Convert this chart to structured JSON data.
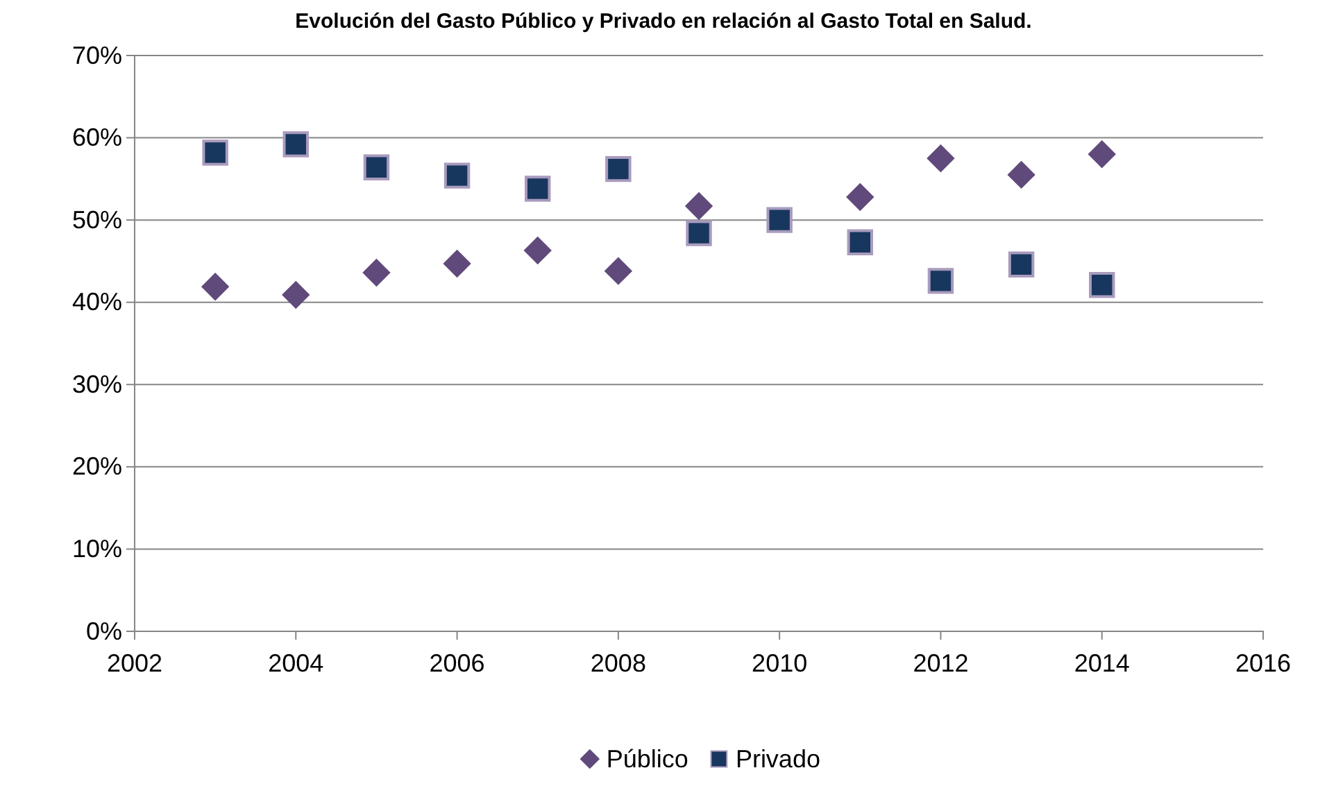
{
  "chart_data": {
    "type": "scatter",
    "title": "Evolución del Gasto Público y Privado en relación al Gasto Total en Salud.",
    "x": [
      2003,
      2004,
      2005,
      2006,
      2007,
      2008,
      2009,
      2010,
      2011,
      2012,
      2013,
      2014
    ],
    "series": [
      {
        "name": "Público",
        "color": "#604a7b",
        "marker": "diamond",
        "values": [
          41.9,
          40.9,
          43.6,
          44.7,
          46.3,
          43.8,
          51.7,
          null,
          52.8,
          57.5,
          55.5,
          58.0
        ]
      },
      {
        "name": "Privado",
        "color": "#17375e",
        "marker": "square",
        "values": [
          58.2,
          59.2,
          56.4,
          55.4,
          53.8,
          56.2,
          48.4,
          50.0,
          47.3,
          42.6,
          44.6,
          42.1
        ]
      }
    ],
    "xlim": [
      2002,
      2016
    ],
    "xticks": [
      2002,
      2004,
      2006,
      2008,
      2010,
      2012,
      2014,
      2016
    ],
    "ylim": [
      0,
      70
    ],
    "yticks": [
      {
        "value": 0,
        "label": "0%"
      },
      {
        "value": 10,
        "label": "10%"
      },
      {
        "value": 20,
        "label": "20%"
      },
      {
        "value": 30,
        "label": "30%"
      },
      {
        "value": 40,
        "label": "40%"
      },
      {
        "value": 50,
        "label": "50%"
      },
      {
        "value": 60,
        "label": "60%"
      },
      {
        "value": 70,
        "label": "70%"
      }
    ],
    "grid": "y",
    "legend": "bottom"
  }
}
